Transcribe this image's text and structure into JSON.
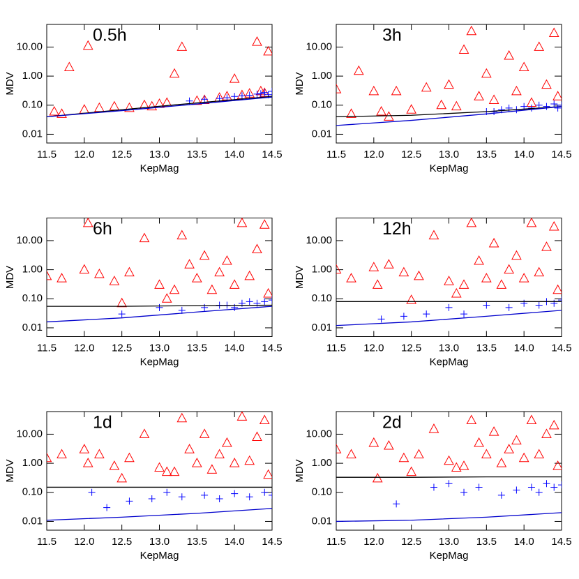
{
  "chart_data": [
    {
      "type": "scatter",
      "title": "0.5h",
      "x_label": "KepMag",
      "y_label": "MDV",
      "log_y": true,
      "xlim": [
        11.5,
        14.5
      ],
      "ylim": [
        0.005,
        60
      ],
      "xticks": [
        11.5,
        {
          "value": 12,
          "label": "12.0"
        },
        12.5,
        {
          "value": 13,
          "label": "13.0"
        },
        13.5,
        {
          "value": 14,
          "label": "14.0"
        },
        14.5
      ],
      "yticks": [
        0.01,
        {
          "value": 0.1,
          "label": "0.10"
        },
        {
          "value": 1,
          "label": "1.00"
        },
        {
          "value": 10,
          "label": "10.00"
        }
      ],
      "series": [
        {
          "marker": "triangle",
          "color": "#ff0000",
          "x": [
            11.6,
            11.8,
            12.0,
            12.05,
            12.2,
            12.4,
            12.6,
            12.8,
            13.0,
            13.2,
            13.3,
            13.5,
            13.6,
            13.8,
            13.9,
            14.0,
            14.1,
            14.2,
            14.3,
            14.35,
            14.4,
            14.45,
            11.7,
            12.9,
            13.1
          ],
          "values": [
            0.06,
            2.0,
            0.07,
            11,
            0.08,
            0.09,
            0.08,
            0.1,
            0.11,
            1.2,
            10,
            0.14,
            0.15,
            0.18,
            0.2,
            0.8,
            0.22,
            0.25,
            15,
            0.3,
            0.26,
            7,
            0.05,
            0.09,
            0.12
          ]
        },
        {
          "marker": "plus",
          "color": "#0000ff",
          "x": [
            13.4,
            13.6,
            13.8,
            13.9,
            14.0,
            14.1,
            14.2,
            14.3,
            14.35,
            14.4,
            14.45,
            14.5
          ],
          "values": [
            0.14,
            0.16,
            0.17,
            0.18,
            0.2,
            0.21,
            0.22,
            0.24,
            0.25,
            0.27,
            0.23,
            0.3
          ]
        },
        {
          "marker": "line",
          "color": "#000000",
          "x": [
            11.5,
            12.5,
            13.5,
            14.5
          ],
          "values": [
            0.04,
            0.07,
            0.12,
            0.2
          ]
        },
        {
          "marker": "line",
          "color": "#0000cc",
          "x": [
            11.5,
            12.5,
            13.5,
            14.5
          ],
          "values": [
            0.04,
            0.065,
            0.11,
            0.19
          ]
        }
      ]
    },
    {
      "type": "scatter",
      "title": "3h",
      "x_label": "KepMag",
      "y_label": "MDV",
      "log_y": true,
      "xlim": [
        11.5,
        14.5
      ],
      "ylim": [
        0.005,
        60
      ],
      "xticks": [
        11.5,
        {
          "value": 12,
          "label": "12.0"
        },
        12.5,
        {
          "value": 13,
          "label": "13.0"
        },
        13.5,
        {
          "value": 14,
          "label": "14.0"
        },
        14.5
      ],
      "yticks": [
        0.01,
        {
          "value": 0.1,
          "label": "0.10"
        },
        {
          "value": 1,
          "label": "1.00"
        },
        {
          "value": 10,
          "label": "10.00"
        }
      ],
      "series": [
        {
          "marker": "triangle",
          "color": "#ff0000",
          "x": [
            11.5,
            11.7,
            11.8,
            12.0,
            12.1,
            12.3,
            12.5,
            12.7,
            12.9,
            13.0,
            13.2,
            13.3,
            13.4,
            13.5,
            13.6,
            13.8,
            13.9,
            14.0,
            14.1,
            14.2,
            14.3,
            14.4,
            14.45,
            12.2,
            13.1
          ],
          "values": [
            0.35,
            0.05,
            1.5,
            0.3,
            0.06,
            0.3,
            0.07,
            0.4,
            0.1,
            0.5,
            8,
            35,
            0.2,
            1.2,
            0.15,
            5,
            0.3,
            2,
            0.12,
            10,
            0.5,
            30,
            0.2,
            0.04,
            0.09
          ]
        },
        {
          "marker": "plus",
          "color": "#0000ff",
          "x": [
            13.5,
            13.7,
            13.8,
            13.9,
            14.0,
            14.1,
            14.2,
            14.3,
            14.4,
            14.5,
            14.45,
            13.6
          ],
          "values": [
            0.06,
            0.07,
            0.08,
            0.07,
            0.09,
            0.08,
            0.1,
            0.09,
            0.11,
            0.1,
            0.08,
            0.06
          ]
        },
        {
          "marker": "line",
          "color": "#000000",
          "x": [
            11.5,
            12.5,
            13.5,
            14.5
          ],
          "values": [
            0.04,
            0.045,
            0.06,
            0.09
          ]
        },
        {
          "marker": "line",
          "color": "#0000cc",
          "x": [
            11.5,
            12.5,
            13.5,
            14.5
          ],
          "values": [
            0.02,
            0.03,
            0.05,
            0.09
          ]
        }
      ]
    },
    {
      "type": "scatter",
      "title": "6h",
      "x_label": "KepMag",
      "y_label": "MDV",
      "log_y": true,
      "xlim": [
        11.5,
        14.5
      ],
      "ylim": [
        0.005,
        60
      ],
      "xticks": [
        11.5,
        {
          "value": 12,
          "label": "12.0"
        },
        12.5,
        {
          "value": 13,
          "label": "13.0"
        },
        13.5,
        {
          "value": 14,
          "label": "14.0"
        },
        14.5
      ],
      "yticks": [
        0.01,
        {
          "value": 0.1,
          "label": "0.10"
        },
        {
          "value": 1,
          "label": "1.00"
        },
        {
          "value": 10,
          "label": "10.00"
        }
      ],
      "series": [
        {
          "marker": "triangle",
          "color": "#ff0000",
          "x": [
            11.5,
            11.7,
            12.0,
            12.05,
            12.2,
            12.4,
            12.6,
            12.8,
            13.0,
            13.2,
            13.3,
            13.4,
            13.5,
            13.6,
            13.7,
            13.8,
            13.9,
            14.0,
            14.1,
            14.2,
            14.3,
            14.4,
            14.45,
            12.5,
            13.1
          ],
          "values": [
            0.6,
            0.5,
            1.0,
            40,
            0.7,
            0.4,
            0.8,
            12,
            0.3,
            0.2,
            15,
            1.5,
            0.5,
            3,
            0.2,
            0.8,
            2,
            0.3,
            40,
            0.6,
            5,
            35,
            0.15,
            0.07,
            0.1
          ]
        },
        {
          "marker": "plus",
          "color": "#0000ff",
          "x": [
            13.0,
            13.3,
            13.6,
            13.8,
            13.9,
            14.0,
            14.1,
            14.2,
            14.3,
            14.4,
            14.5,
            12.5
          ],
          "values": [
            0.05,
            0.04,
            0.05,
            0.06,
            0.06,
            0.05,
            0.07,
            0.08,
            0.07,
            0.08,
            0.09,
            0.03
          ]
        },
        {
          "marker": "line",
          "color": "#000000",
          "x": [
            11.5,
            12.5,
            13.5,
            14.5
          ],
          "values": [
            0.055,
            0.055,
            0.058,
            0.06
          ]
        },
        {
          "marker": "line",
          "color": "#0000cc",
          "x": [
            11.5,
            12.5,
            13.5,
            14.5
          ],
          "values": [
            0.016,
            0.022,
            0.035,
            0.055
          ]
        }
      ]
    },
    {
      "type": "scatter",
      "title": "12h",
      "x_label": "KepMag",
      "y_label": "MDV",
      "log_y": true,
      "xlim": [
        11.5,
        14.5
      ],
      "ylim": [
        0.005,
        60
      ],
      "xticks": [
        11.5,
        {
          "value": 12,
          "label": "12.0"
        },
        12.5,
        {
          "value": 13,
          "label": "13.0"
        },
        13.5,
        {
          "value": 14,
          "label": "14.0"
        },
        14.5
      ],
      "yticks": [
        0.01,
        {
          "value": 0.1,
          "label": "0.10"
        },
        {
          "value": 1,
          "label": "1.00"
        },
        {
          "value": 10,
          "label": "10.00"
        }
      ],
      "series": [
        {
          "marker": "triangle",
          "color": "#ff0000",
          "x": [
            11.5,
            11.7,
            12.0,
            12.05,
            12.2,
            12.4,
            12.6,
            12.8,
            13.0,
            13.2,
            13.3,
            13.4,
            13.5,
            13.6,
            13.7,
            13.8,
            13.9,
            14.0,
            14.1,
            14.2,
            14.3,
            14.4,
            14.45,
            12.5,
            13.1
          ],
          "values": [
            1.0,
            0.5,
            1.2,
            0.3,
            1.5,
            0.8,
            0.6,
            15,
            0.4,
            0.3,
            40,
            2,
            0.5,
            8,
            0.3,
            1,
            3,
            0.5,
            40,
            0.8,
            6,
            30,
            0.2,
            0.09,
            0.15
          ]
        },
        {
          "marker": "plus",
          "color": "#0000ff",
          "x": [
            12.1,
            12.4,
            12.7,
            13.0,
            13.2,
            13.5,
            13.8,
            14.0,
            14.2,
            14.3,
            14.4,
            14.5
          ],
          "values": [
            0.02,
            0.025,
            0.03,
            0.05,
            0.03,
            0.06,
            0.05,
            0.07,
            0.06,
            0.08,
            0.07,
            0.09
          ]
        },
        {
          "marker": "line",
          "color": "#000000",
          "x": [
            11.5,
            12.5,
            13.5,
            14.5
          ],
          "values": [
            0.08,
            0.08,
            0.08,
            0.08
          ]
        },
        {
          "marker": "line",
          "color": "#0000cc",
          "x": [
            11.5,
            12.5,
            13.5,
            14.5
          ],
          "values": [
            0.012,
            0.016,
            0.025,
            0.04
          ]
        }
      ]
    },
    {
      "type": "scatter",
      "title": "1d",
      "x_label": "KepMag",
      "y_label": "MDV",
      "log_y": true,
      "xlim": [
        11.5,
        14.5
      ],
      "ylim": [
        0.005,
        60
      ],
      "xticks": [
        11.5,
        {
          "value": 12,
          "label": "12.0"
        },
        12.5,
        {
          "value": 13,
          "label": "13.0"
        },
        13.5,
        {
          "value": 14,
          "label": "14.0"
        },
        14.5
      ],
      "yticks": [
        0.01,
        {
          "value": 0.1,
          "label": "0.10"
        },
        {
          "value": 1,
          "label": "1.00"
        },
        {
          "value": 10,
          "label": "10.00"
        }
      ],
      "series": [
        {
          "marker": "triangle",
          "color": "#ff0000",
          "x": [
            11.5,
            11.7,
            12.0,
            12.05,
            12.2,
            12.4,
            12.6,
            12.8,
            13.0,
            13.2,
            13.3,
            13.4,
            13.5,
            13.6,
            13.7,
            13.8,
            13.9,
            14.0,
            14.1,
            14.2,
            14.3,
            14.4,
            14.45,
            12.5,
            13.1
          ],
          "values": [
            1.5,
            2.0,
            3,
            1.0,
            2,
            0.8,
            1.5,
            10,
            0.7,
            0.5,
            35,
            3,
            1,
            10,
            0.6,
            2,
            5,
            1,
            40,
            1.2,
            8,
            30,
            0.4,
            0.3,
            0.5
          ]
        },
        {
          "marker": "plus",
          "color": "#0000ff",
          "x": [
            12.1,
            12.3,
            12.6,
            12.9,
            13.1,
            13.3,
            13.6,
            13.8,
            14.0,
            14.2,
            14.4,
            14.5
          ],
          "values": [
            0.1,
            0.03,
            0.05,
            0.06,
            0.1,
            0.07,
            0.08,
            0.06,
            0.09,
            0.07,
            0.1,
            0.08
          ]
        },
        {
          "marker": "line",
          "color": "#000000",
          "x": [
            11.5,
            12.5,
            13.5,
            14.5
          ],
          "values": [
            0.15,
            0.15,
            0.15,
            0.15
          ]
        },
        {
          "marker": "line",
          "color": "#0000cc",
          "x": [
            11.5,
            12.5,
            13.5,
            14.5
          ],
          "values": [
            0.011,
            0.014,
            0.019,
            0.028
          ]
        }
      ]
    },
    {
      "type": "scatter",
      "title": "2d",
      "x_label": "KepMag",
      "y_label": "MDV",
      "log_y": true,
      "xlim": [
        11.5,
        14.5
      ],
      "ylim": [
        0.005,
        60
      ],
      "xticks": [
        11.5,
        {
          "value": 12,
          "label": "12.0"
        },
        12.5,
        {
          "value": 13,
          "label": "13.0"
        },
        13.5,
        {
          "value": 14,
          "label": "14.0"
        },
        14.5
      ],
      "yticks": [
        0.01,
        {
          "value": 0.1,
          "label": "0.10"
        },
        {
          "value": 1,
          "label": "1.00"
        },
        {
          "value": 10,
          "label": "10.00"
        }
      ],
      "series": [
        {
          "marker": "triangle",
          "color": "#ff0000",
          "x": [
            11.5,
            11.7,
            12.0,
            12.05,
            12.2,
            12.4,
            12.6,
            12.8,
            13.0,
            13.2,
            13.3,
            13.4,
            13.5,
            13.6,
            13.7,
            13.8,
            13.9,
            14.0,
            14.1,
            14.2,
            14.3,
            14.4,
            14.45,
            12.5,
            13.1
          ],
          "values": [
            3,
            2,
            5,
            0.3,
            4,
            1.5,
            2,
            15,
            1.2,
            0.8,
            30,
            5,
            2,
            12,
            1,
            3,
            6,
            1.5,
            30,
            2,
            10,
            20,
            0.8,
            0.5,
            0.7
          ]
        },
        {
          "marker": "plus",
          "color": "#0000ff",
          "x": [
            12.3,
            12.8,
            13.0,
            13.2,
            13.4,
            13.7,
            13.9,
            14.1,
            14.2,
            14.3,
            14.4,
            14.5
          ],
          "values": [
            0.04,
            0.15,
            0.2,
            0.1,
            0.15,
            0.08,
            0.12,
            0.15,
            0.1,
            0.2,
            0.15,
            0.18
          ]
        },
        {
          "marker": "line",
          "color": "#000000",
          "x": [
            11.5,
            12.5,
            13.5,
            14.5
          ],
          "values": [
            0.33,
            0.33,
            0.34,
            0.34
          ]
        },
        {
          "marker": "line",
          "color": "#0000cc",
          "x": [
            11.5,
            12.5,
            13.5,
            14.5
          ],
          "values": [
            0.01,
            0.011,
            0.014,
            0.02
          ]
        }
      ]
    }
  ]
}
